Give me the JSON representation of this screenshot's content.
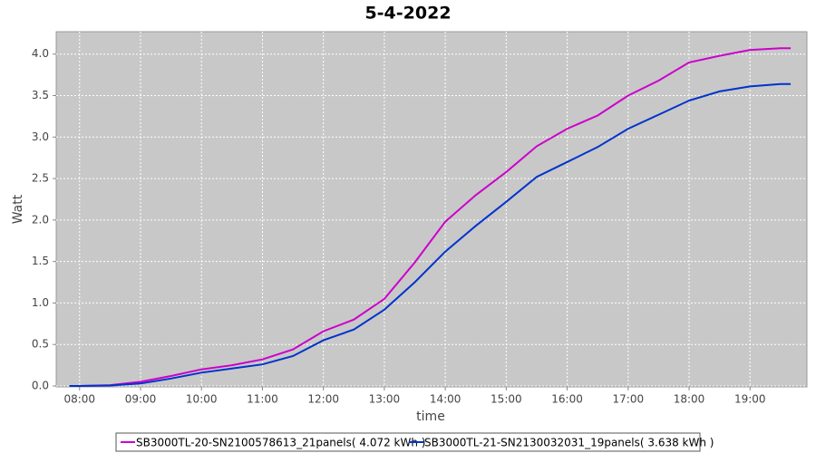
{
  "chart_data": {
    "type": "line",
    "title": "5-4-2022",
    "x_label": "time",
    "y_label": "Watt",
    "x": [
      "07:50",
      "08:00",
      "08:30",
      "09:00",
      "09:30",
      "10:00",
      "10:30",
      "11:00",
      "11:30",
      "12:00",
      "12:30",
      "13:00",
      "13:30",
      "14:00",
      "14:30",
      "15:00",
      "15:30",
      "16:00",
      "16:30",
      "17:00",
      "17:30",
      "18:00",
      "18:30",
      "19:00",
      "19:30",
      "19:40"
    ],
    "xlim": [
      "07:37",
      "19:56"
    ],
    "xticks": [
      "08:00",
      "09:00",
      "10:00",
      "11:00",
      "12:00",
      "13:00",
      "14:00",
      "15:00",
      "16:00",
      "17:00",
      "18:00",
      "19:00"
    ],
    "ylim": [
      0,
      4.27
    ],
    "yticks": [
      {
        "value": 0,
        "label": "0.0"
      },
      0.5,
      {
        "value": 1,
        "label": "1.0"
      },
      1.5,
      {
        "value": 2,
        "label": "2.0"
      },
      2.5,
      {
        "value": 3,
        "label": "3.0"
      },
      3.5,
      {
        "value": 4,
        "label": "4.0"
      }
    ],
    "grid": true,
    "legend": "bottom",
    "series": [
      {
        "name": "SB3000TL-20-SN2100578613_21panels( 4.072 kWh )",
        "color": "#cc00cc",
        "values": [
          0,
          0,
          0.01,
          0.05,
          0.12,
          0.2,
          0.25,
          0.32,
          0.44,
          0.66,
          0.8,
          1.05,
          1.49,
          1.98,
          2.3,
          2.58,
          2.89,
          3.1,
          3.26,
          3.5,
          3.68,
          3.9,
          3.98,
          4.05,
          4.07,
          4.07
        ]
      },
      {
        "name": "SB3000TL-21-SN2130032031_19panels( 3.638 kWh )",
        "color": "#0033cc",
        "values": [
          0,
          0,
          0.005,
          0.03,
          0.09,
          0.16,
          0.21,
          0.26,
          0.36,
          0.55,
          0.68,
          0.92,
          1.25,
          1.62,
          1.93,
          2.22,
          2.52,
          2.7,
          2.88,
          3.1,
          3.27,
          3.44,
          3.55,
          3.61,
          3.64,
          3.64
        ]
      }
    ]
  }
}
